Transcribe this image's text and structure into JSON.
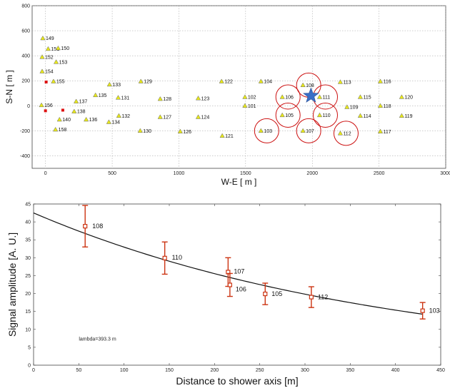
{
  "chart_data": [
    {
      "type": "scatter",
      "title": "",
      "xlabel": "W-E [ m ]",
      "ylabel": "S-N  [ m ]",
      "xlim": [
        -100,
        3000
      ],
      "ylim": [
        -500,
        800
      ],
      "xticks": [
        "0",
        "500",
        "1000",
        "1500",
        "2000",
        "2500",
        "3000"
      ],
      "xtick_values": [
        0,
        500,
        1000,
        1500,
        2000,
        2500,
        3000
      ],
      "yticks": [
        "800",
        "600",
        "400",
        "200",
        "0",
        "-200",
        "-400"
      ],
      "ytick_values": [
        800,
        600,
        400,
        200,
        0,
        -200,
        -400
      ],
      "grid": true,
      "colors": {
        "station": "#e8e81a",
        "highlight_circle": "#cc1111",
        "core": "#3a6ec6",
        "square": "#dd1111"
      },
      "stations": [
        {
          "id": "149",
          "x": -20,
          "y": 540
        },
        {
          "id": "151",
          "x": 20,
          "y": 455
        },
        {
          "id": "150",
          "x": 95,
          "y": 460
        },
        {
          "id": "152",
          "x": -25,
          "y": 390
        },
        {
          "id": "153",
          "x": 80,
          "y": 350
        },
        {
          "id": "154",
          "x": -25,
          "y": 275
        },
        {
          "id": "155",
          "x": 60,
          "y": 195
        },
        {
          "id": "156",
          "x": -30,
          "y": 5
        },
        {
          "id": "137",
          "x": 230,
          "y": 35
        },
        {
          "id": "138",
          "x": 215,
          "y": -45
        },
        {
          "id": "140",
          "x": 105,
          "y": -110
        },
        {
          "id": "158",
          "x": 75,
          "y": -190
        },
        {
          "id": "136",
          "x": 305,
          "y": -110
        },
        {
          "id": "135",
          "x": 375,
          "y": 85
        },
        {
          "id": "133",
          "x": 480,
          "y": 170
        },
        {
          "id": "131",
          "x": 545,
          "y": 65
        },
        {
          "id": "132",
          "x": 550,
          "y": -80
        },
        {
          "id": "134",
          "x": 475,
          "y": -130
        },
        {
          "id": "129",
          "x": 715,
          "y": 195
        },
        {
          "id": "128",
          "x": 860,
          "y": 55
        },
        {
          "id": "127",
          "x": 860,
          "y": -90
        },
        {
          "id": "130",
          "x": 710,
          "y": -200
        },
        {
          "id": "126",
          "x": 1010,
          "y": -205
        },
        {
          "id": "123",
          "x": 1145,
          "y": 60
        },
        {
          "id": "124",
          "x": 1145,
          "y": -90
        },
        {
          "id": "122",
          "x": 1320,
          "y": 195
        },
        {
          "id": "121",
          "x": 1325,
          "y": -240
        },
        {
          "id": "104",
          "x": 1615,
          "y": 195
        },
        {
          "id": "102",
          "x": 1495,
          "y": 70
        },
        {
          "id": "101",
          "x": 1495,
          "y": 0
        },
        {
          "id": "103",
          "x": 1615,
          "y": -200
        },
        {
          "id": "106",
          "x": 1775,
          "y": 70
        },
        {
          "id": "108",
          "x": 1930,
          "y": 165
        },
        {
          "id": "111",
          "x": 2055,
          "y": 70
        },
        {
          "id": "105",
          "x": 1775,
          "y": -75
        },
        {
          "id": "110",
          "x": 2055,
          "y": -75
        },
        {
          "id": "107",
          "x": 1930,
          "y": -200
        },
        {
          "id": "112",
          "x": 2210,
          "y": -220
        },
        {
          "id": "113",
          "x": 2210,
          "y": 190
        },
        {
          "id": "109",
          "x": 2260,
          "y": -10
        },
        {
          "id": "115",
          "x": 2360,
          "y": 70
        },
        {
          "id": "114",
          "x": 2360,
          "y": -80
        },
        {
          "id": "116",
          "x": 2510,
          "y": 195
        },
        {
          "id": "118",
          "x": 2510,
          "y": 0
        },
        {
          "id": "117",
          "x": 2510,
          "y": -205
        },
        {
          "id": "120",
          "x": 2670,
          "y": 70
        },
        {
          "id": "119",
          "x": 2670,
          "y": -80
        }
      ],
      "circled_stations": [
        "108",
        "106",
        "111",
        "105",
        "110",
        "103",
        "107",
        "112"
      ],
      "red_squares": [
        {
          "x": 5,
          "y": 190
        },
        {
          "x": 0,
          "y": -40
        },
        {
          "x": 130,
          "y": -35
        }
      ],
      "shower_core": {
        "x": 1990,
        "y": 80
      }
    },
    {
      "type": "scatter",
      "title": "",
      "xlabel": "Distance to shower axis [m]",
      "ylabel": "Signal amplitude [A. U.]",
      "xlim": [
        0,
        450
      ],
      "ylim": [
        0,
        45
      ],
      "xticks": [
        "0",
        "50",
        "100",
        "150",
        "200",
        "250",
        "300",
        "350",
        "400",
        "450"
      ],
      "xtick_values": [
        0,
        50,
        100,
        150,
        200,
        250,
        300,
        350,
        400,
        450
      ],
      "yticks": [
        "0",
        "5",
        "10",
        "15",
        "20",
        "25",
        "30",
        "35",
        "40",
        "45"
      ],
      "ytick_values": [
        0,
        5,
        10,
        15,
        20,
        25,
        30,
        35,
        40,
        45
      ],
      "grid": false,
      "annotation": "lambda=393.3 m",
      "colors": {
        "points": "#cc3311",
        "fit": "#111111"
      },
      "points": [
        {
          "id": "108",
          "x": 57,
          "y": 38.8,
          "err": 5.8
        },
        {
          "id": "110",
          "x": 145,
          "y": 29.9,
          "err": 4.5
        },
        {
          "id": "107",
          "x": 215,
          "y": 26.0,
          "err": 4.0
        },
        {
          "id": "106",
          "x": 217,
          "y": 22.4,
          "err": 3.2
        },
        {
          "id": "105",
          "x": 256,
          "y": 19.9,
          "err": 3.0
        },
        {
          "id": "112",
          "x": 307,
          "y": 19.0,
          "err": 2.9
        },
        {
          "id": "103",
          "x": 430,
          "y": 15.2,
          "err": 2.3
        }
      ],
      "fit": {
        "A": 42.5,
        "lambda": 393.3,
        "x_range": [
          0,
          430
        ]
      }
    }
  ]
}
